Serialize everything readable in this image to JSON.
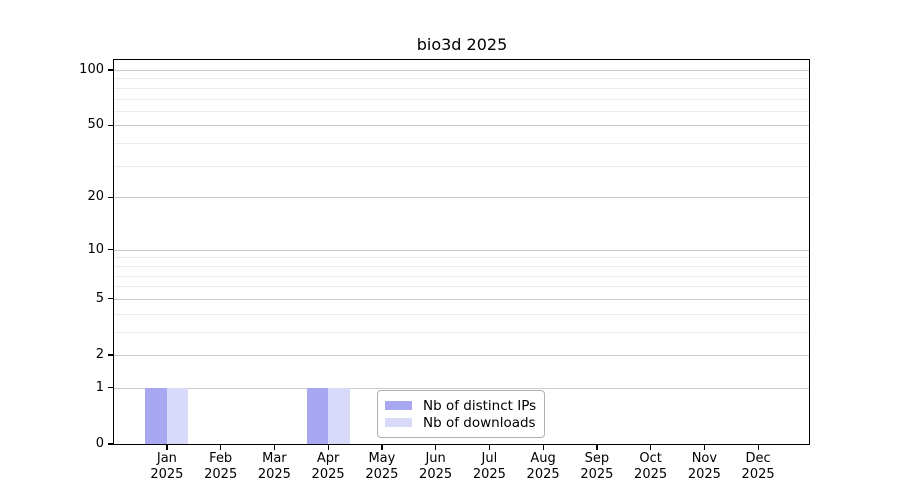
{
  "chart_data": {
    "type": "bar",
    "title": "bio3d 2025",
    "categories": [
      "Jan",
      "Feb",
      "Mar",
      "Apr",
      "May",
      "Jun",
      "Jul",
      "Aug",
      "Sep",
      "Oct",
      "Nov",
      "Dec"
    ],
    "year_label": "2025",
    "series": [
      {
        "name": "Nb of distinct IPs",
        "color": "#a8a8f2",
        "values": [
          1,
          0,
          0,
          1,
          0,
          0,
          0,
          0,
          0,
          0,
          0,
          0
        ]
      },
      {
        "name": "Nb of downloads",
        "color": "#d9d9fa",
        "values": [
          1,
          0,
          0,
          1,
          0,
          0,
          0,
          0,
          0,
          0,
          0,
          0
        ]
      }
    ],
    "y_axis": {
      "scale": "log1p",
      "ticks": [
        0,
        1,
        2,
        5,
        10,
        20,
        50,
        100
      ],
      "minor_gridlines": [
        3,
        4,
        6,
        7,
        8,
        9,
        30,
        40,
        60,
        70,
        80,
        90
      ],
      "range_max_displayed": 113
    },
    "x_axis": {
      "tick_labels_two_lines": true
    },
    "legend": {
      "position": "inside-bottom-center"
    },
    "colors": {
      "major_grid": "#c9c9c9",
      "minor_grid": "#ececec",
      "axis": "#000000",
      "background": "#ffffff"
    }
  }
}
